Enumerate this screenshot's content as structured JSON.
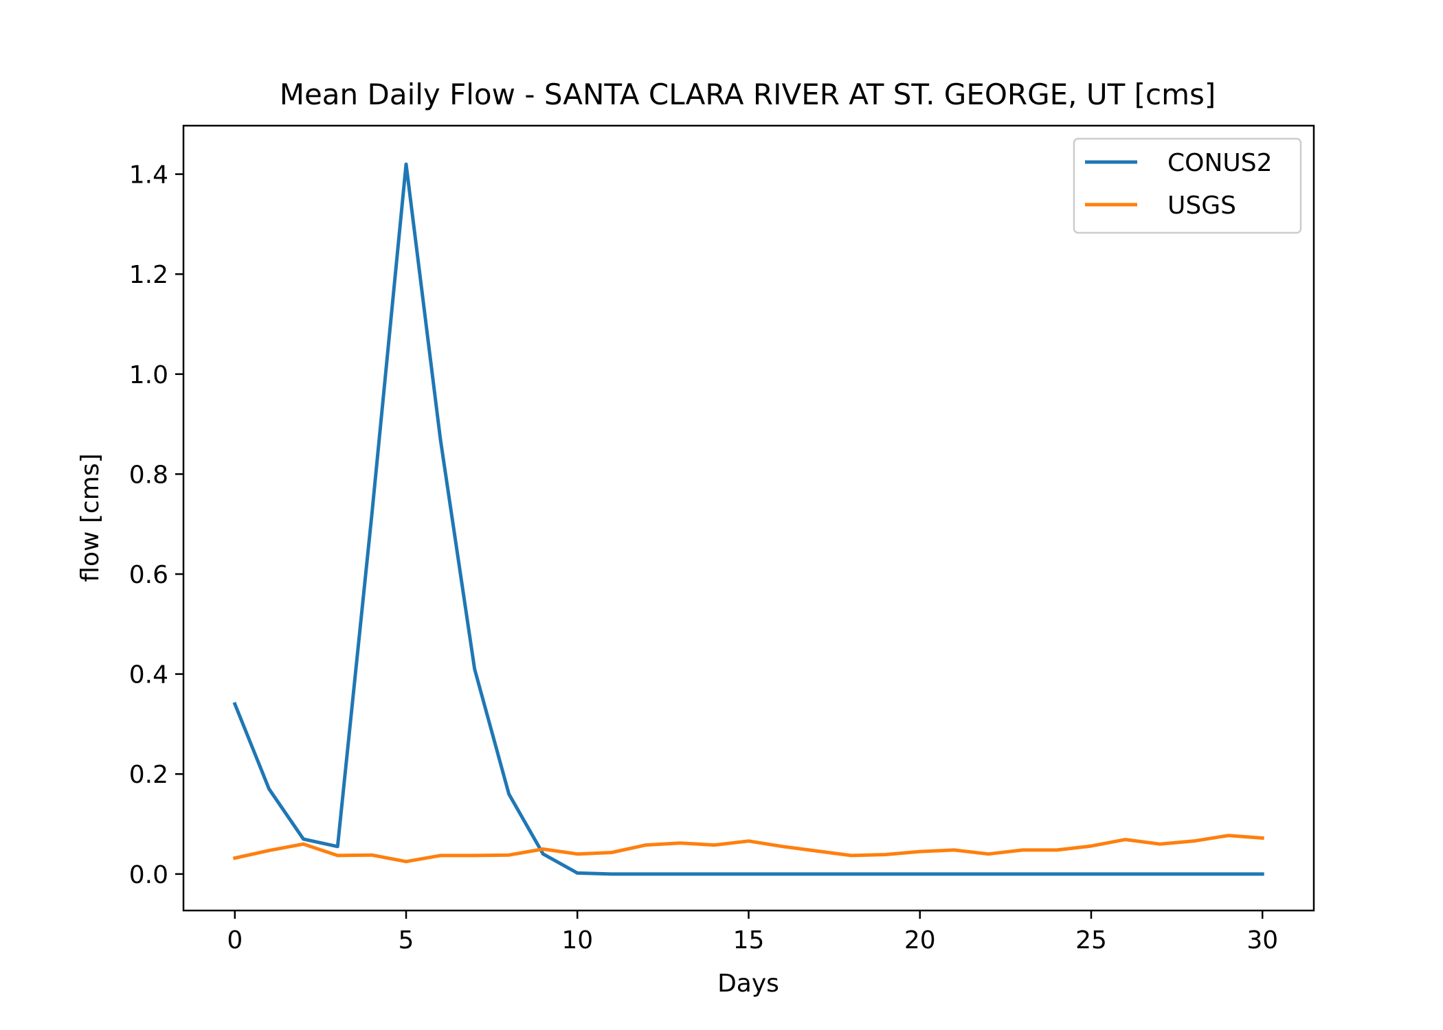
{
  "chart_data": {
    "type": "line",
    "title": "Mean Daily Flow - SANTA CLARA RIVER AT ST. GEORGE, UT [cms]",
    "xlabel": "Days",
    "ylabel": "flow [cms]",
    "xlim": [
      -1.5,
      31.5
    ],
    "ylim": [
      -0.073,
      1.497
    ],
    "xticks": [
      0,
      5,
      10,
      15,
      20,
      25,
      30
    ],
    "yticks": [
      0.0,
      0.2,
      0.4,
      0.6,
      0.8,
      1.0,
      1.2,
      1.4
    ],
    "ytick_labels": [
      "0.0",
      "0.2",
      "0.4",
      "0.6",
      "0.8",
      "1.0",
      "1.2",
      "1.4"
    ],
    "grid": false,
    "legend_position": "upper right",
    "x": [
      0,
      1,
      2,
      3,
      4,
      5,
      6,
      7,
      8,
      9,
      10,
      11,
      12,
      13,
      14,
      15,
      16,
      17,
      18,
      19,
      20,
      21,
      22,
      23,
      24,
      25,
      26,
      27,
      28,
      29,
      30
    ],
    "series": [
      {
        "name": "CONUS2",
        "color": "#1f77b4",
        "values": [
          0.34,
          0.17,
          0.07,
          0.055,
          0.72,
          1.42,
          0.87,
          0.41,
          0.16,
          0.04,
          0.002,
          0,
          0,
          0,
          0,
          0,
          0,
          0,
          0,
          0,
          0,
          0,
          0,
          0,
          0,
          0,
          0,
          0,
          0,
          0,
          0
        ]
      },
      {
        "name": "USGS",
        "color": "#ff7f0e",
        "values": [
          0.032,
          0.047,
          0.06,
          0.037,
          0.038,
          0.025,
          0.037,
          0.037,
          0.038,
          0.05,
          0.04,
          0.043,
          0.058,
          0.062,
          0.058,
          0.066,
          0.055,
          0.046,
          0.037,
          0.039,
          0.045,
          0.048,
          0.04,
          0.048,
          0.048,
          0.056,
          0.069,
          0.06,
          0.066,
          0.077,
          0.072
        ]
      }
    ]
  }
}
